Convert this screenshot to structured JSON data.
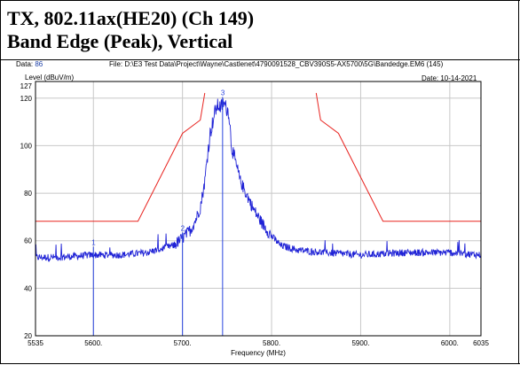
{
  "header": {
    "title_line1": "TX, 802.11ax(HE20) (Ch 149)",
    "title_line2": "Band Edge (Peak), Vertical",
    "data_label": "Data:",
    "data_value": "86",
    "file_text": "File: D:\\E3 Test Data\\Project\\Wayne\\Castlenet\\4790091528_CBV390S5-AX5700\\5G\\Bandedge.EM6 (145)",
    "date_text": "Date: 10-14-2021"
  },
  "colors": {
    "trace": "#1f22d6",
    "limit": "#e8231f",
    "markers": "#2a45e0",
    "grid": "#c8c8c8"
  },
  "chart_data": {
    "type": "line",
    "title": "",
    "xlabel": "Frequency (MHz)",
    "ylabel": "Level (dBuV/m)",
    "xlim": [
      5535,
      6035
    ],
    "ylim": [
      20,
      127
    ],
    "ytop_label": "127",
    "yticks": [
      20,
      40,
      60,
      80,
      100,
      120
    ],
    "xticks": [
      {
        "v": 5535,
        "label": "5535"
      },
      {
        "v": 5600,
        "label": "5600."
      },
      {
        "v": 5700,
        "label": "5700."
      },
      {
        "v": 5800,
        "label": "5800."
      },
      {
        "v": 5900,
        "label": "5900."
      },
      {
        "v": 6000,
        "label": "6000."
      },
      {
        "v": 6035,
        "label": "6035"
      }
    ],
    "grid": true,
    "limit_line": {
      "name": "",
      "x": [
        5535,
        5650,
        5700,
        5720,
        5725,
        null,
        5850,
        5855,
        5875,
        5925,
        6035
      ],
      "y": [
        68.2,
        68.2,
        105.2,
        110.8,
        122.2,
        null,
        122.2,
        110.8,
        105.2,
        68.2,
        68.2
      ]
    },
    "trace": {
      "name": "",
      "x": [
        5535,
        5560,
        5600,
        5630,
        5660,
        5680,
        5690,
        5700,
        5705,
        5710,
        5715,
        5720,
        5725,
        5728,
        5731,
        5734,
        5737,
        5740,
        5743,
        5746,
        5749,
        5752,
        5755,
        5760,
        5765,
        5770,
        5775,
        5780,
        5785,
        5790,
        5800,
        5810,
        5830,
        5860,
        5900,
        5950,
        6000,
        6035
      ],
      "y": [
        53,
        53,
        54,
        54,
        55,
        57,
        58,
        61,
        63,
        65,
        69,
        74,
        85,
        96,
        105,
        110,
        115,
        117,
        116,
        118,
        116,
        114,
        100,
        92,
        85,
        81,
        77,
        73,
        70,
        67,
        62,
        58,
        56,
        55,
        54,
        55,
        55,
        54
      ]
    },
    "markers": [
      {
        "label": "1",
        "x": 5600,
        "y": 57.5
      },
      {
        "label": "2",
        "x": 5700,
        "y": 63.5
      },
      {
        "label": "3",
        "x": 5745,
        "y": 120.5
      }
    ]
  }
}
